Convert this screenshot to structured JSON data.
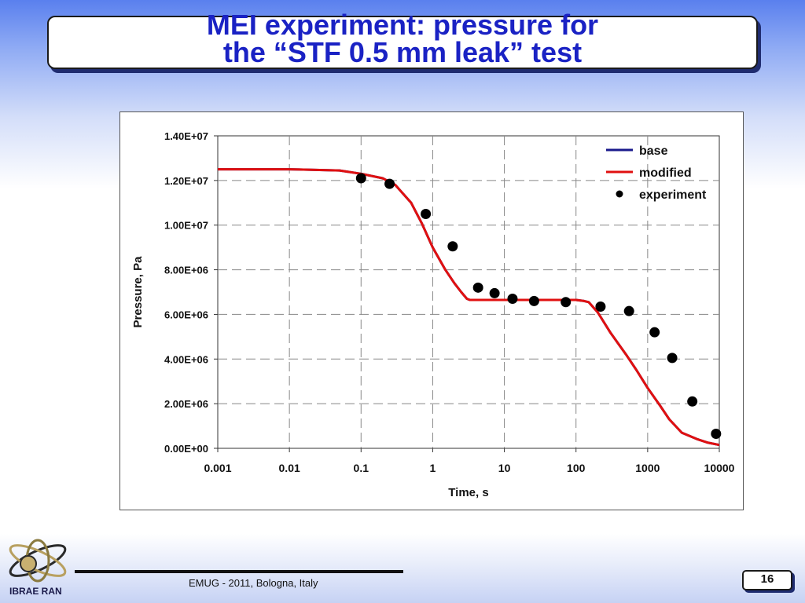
{
  "slide": {
    "title_line1": "MEI experiment: pressure for",
    "title_line2": "the “STF 0.5 mm leak” test",
    "footer": "EMUG - 2011, Bologna, Italy",
    "page_number": "16",
    "logo_text": "IBRAE RAN",
    "title_color": "#1a22c4"
  },
  "chart_data": {
    "type": "line",
    "title": "",
    "xlabel": "Time, s",
    "ylabel": "Pressure, Pa",
    "x_scale": "log",
    "xlim": [
      0.001,
      10000
    ],
    "ylim": [
      0,
      14000000
    ],
    "x_ticks": [
      "0.001",
      "0.01",
      "0.1",
      "1",
      "10",
      "100",
      "1000",
      "10000"
    ],
    "x_tick_values": [
      0.001,
      0.01,
      0.1,
      1,
      10,
      100,
      1000,
      10000
    ],
    "y_ticks": [
      "0.00E+00",
      "2.00E+06",
      "4.00E+06",
      "6.00E+06",
      "8.00E+06",
      "1.00E+07",
      "1.20E+07",
      "1.40E+07"
    ],
    "y_tick_values": [
      0,
      2000000,
      4000000,
      6000000,
      8000000,
      10000000,
      12000000,
      14000000
    ],
    "grid": true,
    "legend_position": "top-right",
    "series": [
      {
        "name": "base",
        "style": "line",
        "color": "#1a1a8c",
        "x": [
          0.001,
          0.01,
          0.05,
          0.1,
          0.2,
          0.3,
          0.5,
          0.7,
          1,
          1.5,
          2,
          2.5,
          3,
          3.3,
          5,
          10,
          30,
          100,
          130,
          150,
          200,
          300,
          500,
          700,
          1000,
          1500,
          2000,
          3000,
          5000,
          7000,
          10000
        ],
        "y": [
          12500000,
          12500000,
          12450000,
          12300000,
          12100000,
          11800000,
          11000000,
          10100000,
          9000000,
          8000000,
          7400000,
          7000000,
          6700000,
          6650000,
          6650000,
          6650000,
          6650000,
          6650000,
          6600000,
          6550000,
          6100000,
          5200000,
          4200000,
          3500000,
          2700000,
          1900000,
          1300000,
          700000,
          400000,
          250000,
          150000
        ]
      },
      {
        "name": "modified",
        "style": "line",
        "color": "#e01010",
        "x": [
          0.001,
          0.01,
          0.05,
          0.1,
          0.2,
          0.3,
          0.5,
          0.7,
          1,
          1.5,
          2,
          2.5,
          3,
          3.3,
          5,
          10,
          30,
          100,
          130,
          150,
          200,
          300,
          500,
          700,
          1000,
          1500,
          2000,
          3000,
          5000,
          7000,
          10000
        ],
        "y": [
          12500000,
          12500000,
          12450000,
          12300000,
          12100000,
          11800000,
          11000000,
          10100000,
          9000000,
          8000000,
          7400000,
          7000000,
          6700000,
          6650000,
          6650000,
          6650000,
          6650000,
          6650000,
          6600000,
          6550000,
          6100000,
          5200000,
          4200000,
          3500000,
          2700000,
          1900000,
          1300000,
          700000,
          400000,
          250000,
          150000
        ]
      },
      {
        "name": "experiment",
        "style": "scatter",
        "color": "#000000",
        "x": [
          0.1,
          0.25,
          0.8,
          1.9,
          4.3,
          7.3,
          13,
          26,
          72,
          220,
          550,
          1250,
          2200,
          4200,
          9000
        ],
        "y": [
          12100000,
          11850000,
          10500000,
          9050000,
          7200000,
          6950000,
          6700000,
          6600000,
          6550000,
          6350000,
          6150000,
          5200000,
          4050000,
          2100000,
          650000
        ]
      }
    ]
  }
}
